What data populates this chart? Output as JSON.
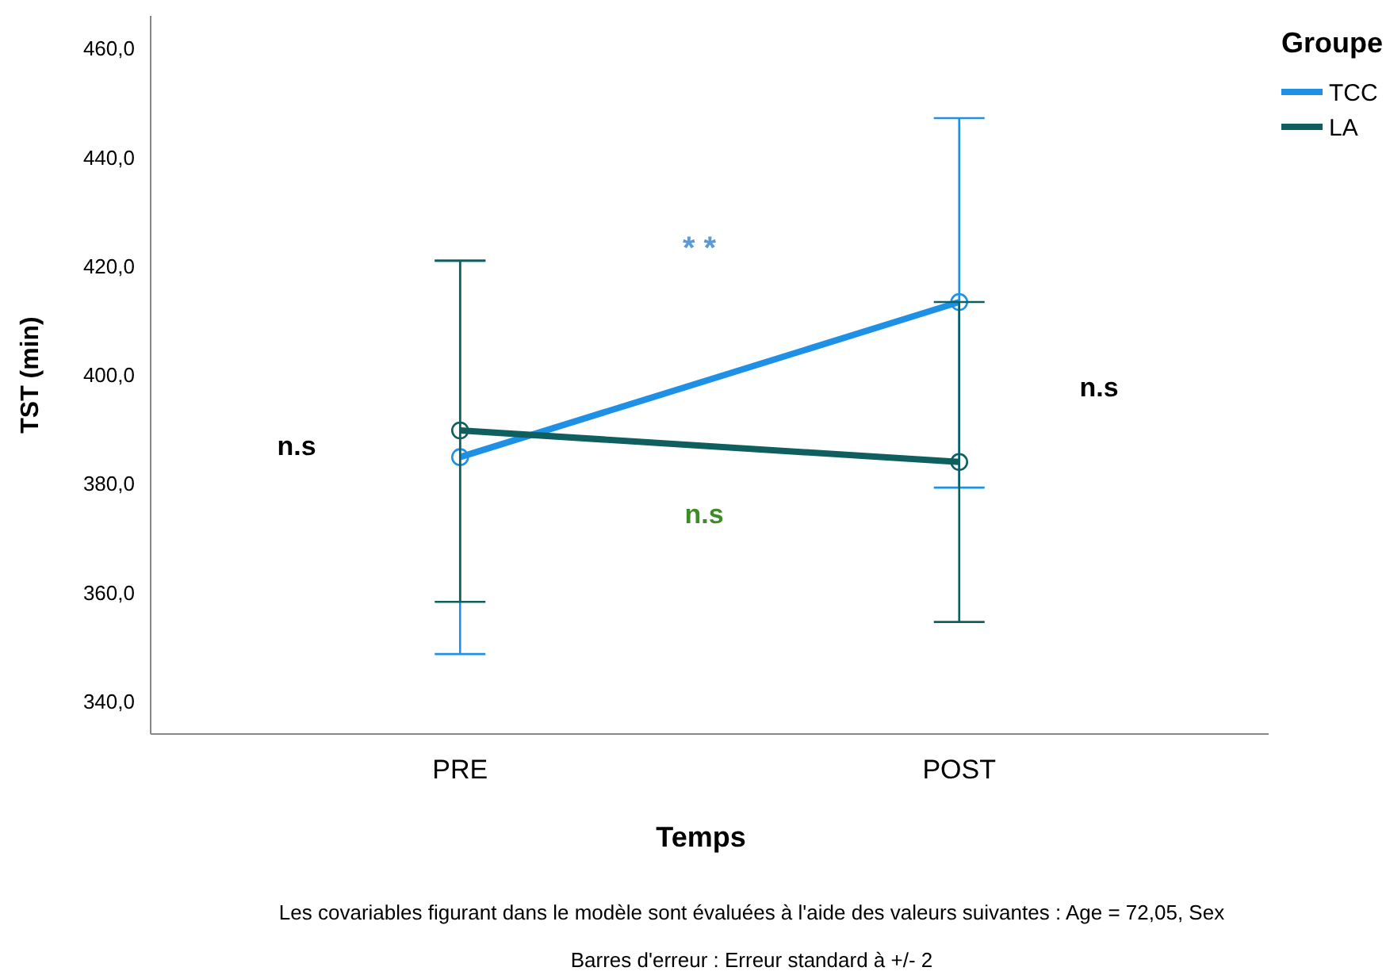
{
  "chart_data": {
    "type": "line",
    "xlabel": "Temps",
    "ylabel": "TST (min)",
    "legend_title": "Groupe",
    "categories": [
      "PRE",
      "POST"
    ],
    "series": [
      {
        "name": "TCC",
        "color": "#1e90e6",
        "values": [
          384.9,
          413.4
        ],
        "errors": [
          [
            348.7,
            421.0
          ],
          [
            379.3,
            447.2
          ]
        ]
      },
      {
        "name": "LA",
        "color": "#0f5f5f",
        "values": [
          389.8,
          384.0
        ],
        "errors": [
          [
            358.3,
            421.0
          ],
          [
            354.6,
            413.4
          ]
        ]
      }
    ],
    "ylim": [
      334,
      466
    ],
    "yticks": [
      {
        "value": 340,
        "label": "340,0"
      },
      {
        "value": 360,
        "label": "360,0"
      },
      {
        "value": 380,
        "label": "380,0"
      },
      {
        "value": 400,
        "label": "400,0"
      },
      {
        "value": 420,
        "label": "420,0"
      },
      {
        "value": 440,
        "label": "440,0"
      },
      {
        "value": 460,
        "label": "460,0"
      }
    ],
    "grid": false,
    "legend": "top right",
    "marker": "circle",
    "line_style": "solid",
    "annotations": [
      "n.s",
      "* *",
      "n.s",
      "n.s",
      "Les covariables figurant dans le modèle sont évaluées à l'aide des valeurs suivantes : Age = 72,05, Sex",
      "Barres d'erreur : Erreur standard à +/- 2"
    ]
  }
}
